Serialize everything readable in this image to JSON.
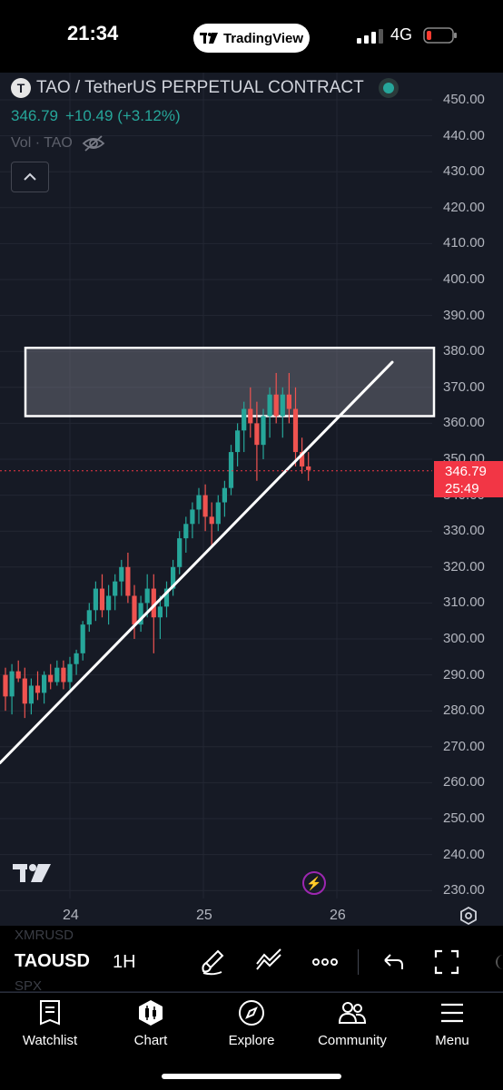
{
  "status_bar": {
    "time": "21:34",
    "app_pill": "TradingView",
    "network": "4G"
  },
  "header": {
    "symbol_logo": "T",
    "symbol_title": "TAO / TetherUS PERPETUAL CONTRACT",
    "last_price": "346.79",
    "change": "+10.49 (+3.12%)",
    "volume_label": "Vol · TAO"
  },
  "price_axis": [
    "450.00",
    "440.00",
    "430.00",
    "420.00",
    "410.00",
    "400.00",
    "390.00",
    "380.00",
    "370.00",
    "360.00",
    "350.00",
    "340.00",
    "330.00",
    "320.00",
    "310.00",
    "300.00",
    "290.00",
    "280.00",
    "270.00",
    "260.00",
    "250.00",
    "240.00",
    "230.00"
  ],
  "time_axis": [
    "24",
    "25",
    "26"
  ],
  "price_tag": {
    "price": "346.79",
    "countdown": "25:49"
  },
  "chart_data": {
    "type": "candlestick",
    "symbol": "TAO / TetherUS PERPETUAL CONTRACT",
    "interval": "1H",
    "ylim": [
      226,
      454
    ],
    "x_ticks": [
      "24",
      "25",
      "26"
    ],
    "last_price": 346.79,
    "zone": {
      "from": 362,
      "to": 381
    },
    "trendline": [
      [
        0,
        265.5
      ],
      [
        29,
        367
      ]
    ],
    "candles": [
      [
        290,
        292,
        280,
        284
      ],
      [
        284,
        293,
        279,
        291
      ],
      [
        291,
        294,
        288,
        289
      ],
      [
        289,
        292,
        278,
        282
      ],
      [
        282,
        289,
        279,
        287
      ],
      [
        287,
        291,
        283,
        285
      ],
      [
        285,
        291,
        282,
        290
      ],
      [
        290,
        293,
        286,
        288
      ],
      [
        288,
        294,
        287,
        292
      ],
      [
        292,
        294,
        286,
        288
      ],
      [
        288,
        295,
        286,
        293
      ],
      [
        293,
        297,
        290,
        296
      ],
      [
        296,
        305,
        294,
        304
      ],
      [
        304,
        310,
        302,
        308
      ],
      [
        308,
        316,
        305,
        314
      ],
      [
        314,
        318,
        306,
        308
      ],
      [
        308,
        315,
        304,
        312
      ],
      [
        312,
        318,
        308,
        316
      ],
      [
        316,
        322,
        312,
        320
      ],
      [
        320,
        324,
        310,
        312
      ],
      [
        312,
        315,
        300,
        304
      ],
      [
        304,
        312,
        302,
        310
      ],
      [
        310,
        318,
        306,
        314
      ],
      [
        314,
        318,
        296,
        306
      ],
      [
        306,
        312,
        300,
        309
      ],
      [
        309,
        316,
        306,
        314
      ],
      [
        314,
        322,
        312,
        320
      ],
      [
        320,
        330,
        318,
        328
      ],
      [
        328,
        334,
        324,
        332
      ],
      [
        332,
        338,
        328,
        336
      ],
      [
        336,
        342,
        332,
        340
      ],
      [
        340,
        343,
        330,
        334
      ],
      [
        334,
        338,
        326,
        332
      ],
      [
        332,
        340,
        330,
        338
      ],
      [
        338,
        344,
        334,
        342
      ],
      [
        342,
        354,
        340,
        352
      ],
      [
        352,
        360,
        348,
        358
      ],
      [
        358,
        366,
        352,
        364
      ],
      [
        364,
        370,
        356,
        360
      ],
      [
        360,
        366,
        344,
        354
      ],
      [
        354,
        364,
        350,
        362
      ],
      [
        362,
        370,
        356,
        368
      ],
      [
        368,
        374,
        360,
        362
      ],
      [
        362,
        370,
        356,
        368
      ],
      [
        368,
        374,
        360,
        364
      ],
      [
        364,
        370,
        348,
        352
      ],
      [
        352,
        356,
        346,
        348
      ],
      [
        348,
        352,
        344,
        347
      ]
    ]
  },
  "toolbar": {
    "symbol": "TAOUSD",
    "timeframe": "1H",
    "bg_ticker_top": "XMRUSD",
    "bg_ticker_bottom": "SPX"
  },
  "tabs": [
    {
      "label": "Watchlist",
      "icon": "book-icon"
    },
    {
      "label": "Chart",
      "icon": "candles-icon"
    },
    {
      "label": "Explore",
      "icon": "compass-icon"
    },
    {
      "label": "Community",
      "icon": "people-icon"
    },
    {
      "label": "Menu",
      "icon": "hamburger-icon"
    }
  ],
  "colors": {
    "up": "#26a69a",
    "down": "#ef5350",
    "background": "#161a25",
    "price_tag": "#f23645"
  }
}
